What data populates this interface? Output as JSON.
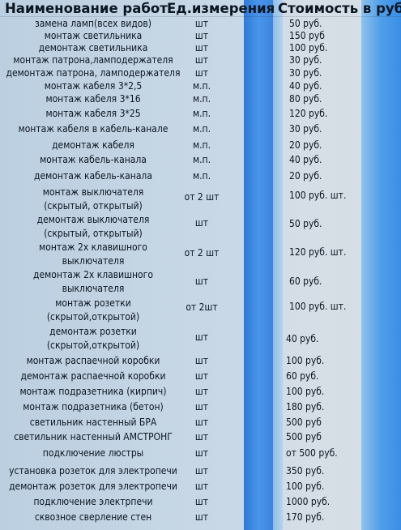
{
  "headers": {
    "name": "Наименование работ",
    "unit": "Ед.измерения",
    "cost": "Стоимость в руб."
  },
  "rows": [
    {
      "name": "замена ламп(всех видов)",
      "unit": "шт",
      "price": "50 руб."
    },
    {
      "name": "монтаж светильника",
      "unit": "шт",
      "price": "150 руб"
    },
    {
      "name": "демонтаж светильника",
      "unit": "шт",
      "price": "100 руб."
    },
    {
      "name": "монтаж патрона,ламподержателя",
      "unit": "шт",
      "price": "30 руб."
    },
    {
      "name": "демонтаж патрона, ламподержателя",
      "unit": "шт",
      "price": "30 руб."
    },
    {
      "name": "монтаж кабеля 3*2,5",
      "unit": "м.п.",
      "price": "40 руб."
    },
    {
      "name": "монтаж кабеля  3*16",
      "unit": "м.п.",
      "price": "80 руб."
    },
    {
      "name": "монтаж кабеля  3*25",
      "unit": "м.п.",
      "price": "120 руб."
    },
    {
      "name": "монтаж кабеля в кабель-канале",
      "unit": "м.п.",
      "price": "30 руб."
    },
    {
      "name": "демонтаж кабеля",
      "unit": "м.п.",
      "price": "20 руб."
    },
    {
      "name": "монтаж кабель-канала",
      "unit": "м.п.",
      "price": "40 руб."
    },
    {
      "name": "демонтаж кабель-канала",
      "unit": "м.п.",
      "price": "20 руб."
    },
    {
      "name": "монтаж выключателя",
      "name2": "(скрытый, открытый)",
      "unit": "от 2 шт",
      "price": "100 руб. шт."
    },
    {
      "name": "демонтаж выключателя",
      "name2": "(скрытый, открытый)",
      "unit": "шт",
      "price": "50 руб."
    },
    {
      "name": "монтаж 2х клавишного",
      "name2": "выключателя",
      "unit": "от 2 шт",
      "price": "120 руб. шт."
    },
    {
      "name": "демонтаж 2х клавишного",
      "name2": "выключателя",
      "unit": "шт",
      "price": "60 руб."
    },
    {
      "name": "монтаж розетки",
      "name2": "(скрытой,открытой)",
      "unit": "от 2шт",
      "price": "100 руб. шт."
    },
    {
      "name": "демонтаж розетки",
      "name2": "(скрытой,открытой)",
      "unit": "шт",
      "price": "40 руб."
    },
    {
      "name": "монтаж распаечной коробки",
      "unit": "шт",
      "price": "100 руб."
    },
    {
      "name": "демонтаж распаечной коробки",
      "unit": "шт",
      "price": "60 руб."
    },
    {
      "name": "монтаж подразетника (кирпич)",
      "unit": "шт",
      "price": "100 руб."
    },
    {
      "name": "монтаж подразетника (бетон)",
      "unit": "шт",
      "price": "180 руб."
    },
    {
      "name": "светильник настенный БРА",
      "unit": "шт",
      "price": "500 руб"
    },
    {
      "name": "светильник настенный АМСТРОНГ",
      "unit": "шт",
      "price": "500 руб"
    },
    {
      "name": "подключение люстры",
      "unit": "шт",
      "price": "от 500 руб."
    },
    {
      "name": "установка розеток для электропечи",
      "unit": "шт",
      "price": "350 руб."
    },
    {
      "name": "демонтаж розеток для электропечи",
      "unit": "шт",
      "price": "100 руб."
    },
    {
      "name": "подключение электрпечи",
      "unit": "шт",
      "price": "1000 руб."
    },
    {
      "name": "сквозное сверление стен",
      "unit": "шт",
      "price": "170 руб."
    }
  ]
}
